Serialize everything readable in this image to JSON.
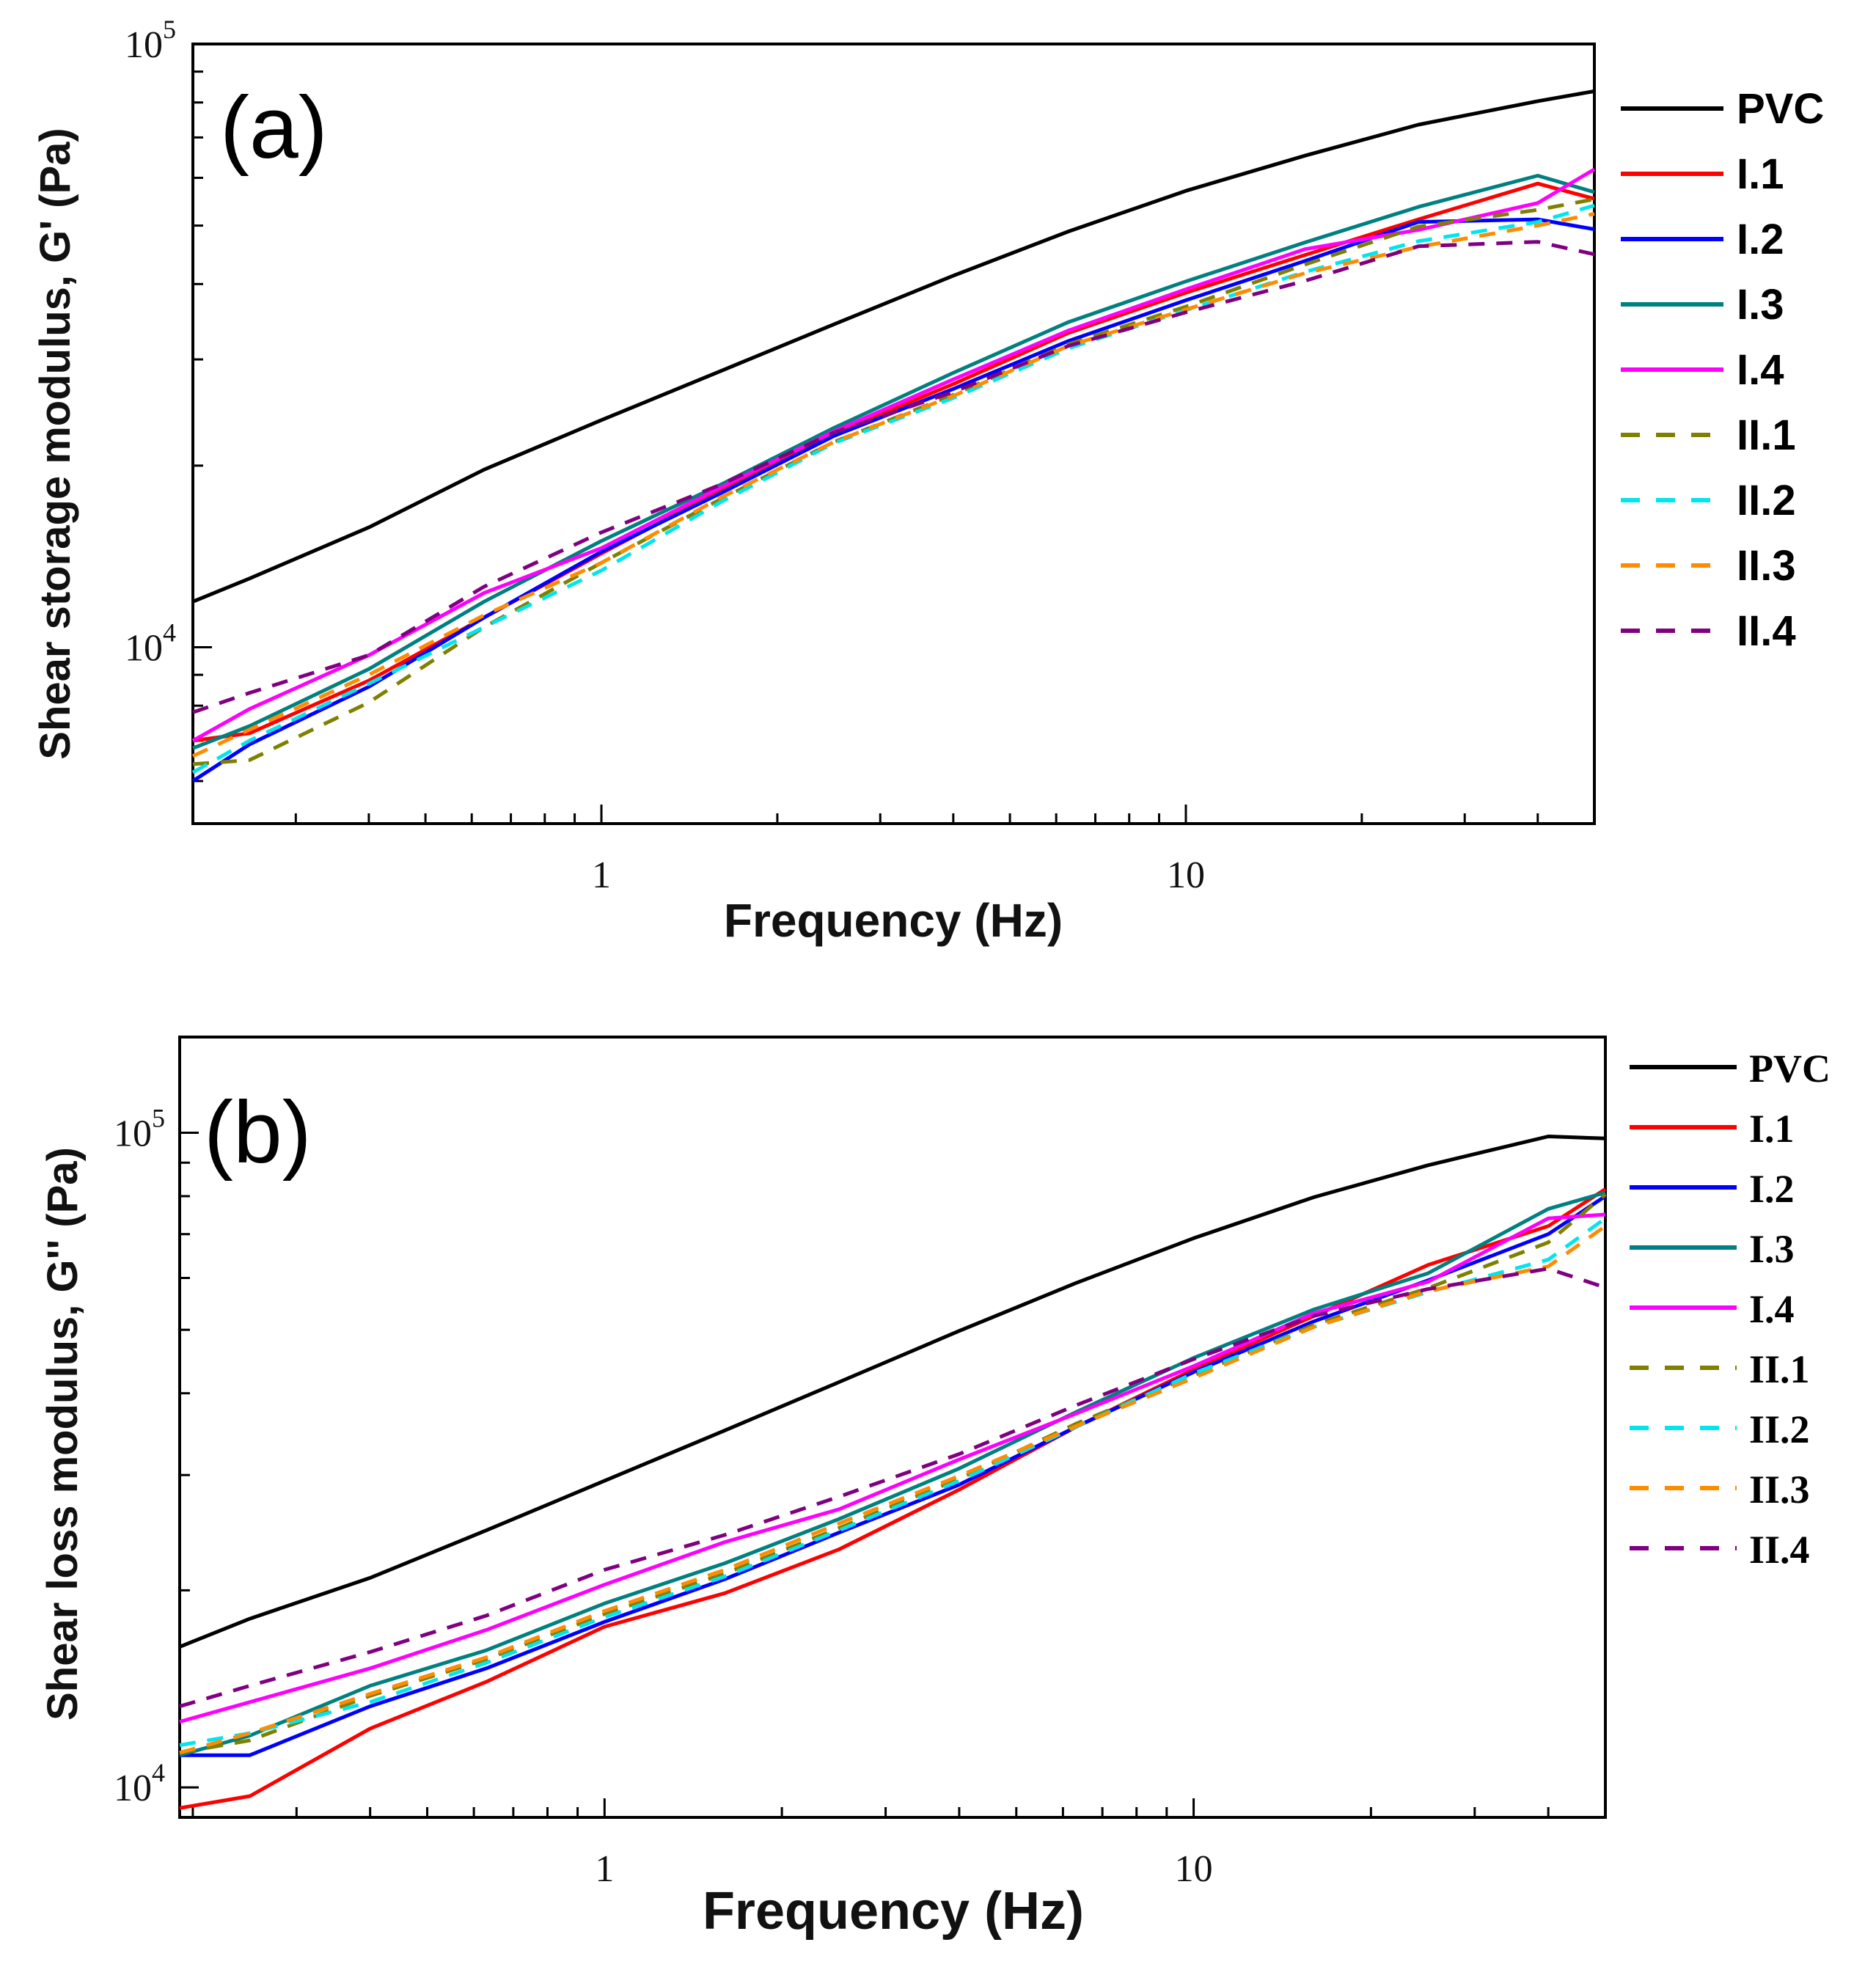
{
  "series_styles": [
    {
      "name": "PVC",
      "color": "#000000",
      "dash": false
    },
    {
      "name": "I.1",
      "color": "#ff0000",
      "dash": false
    },
    {
      "name": "I.2",
      "color": "#0000ff",
      "dash": false
    },
    {
      "name": "I.3",
      "color": "#008080",
      "dash": false
    },
    {
      "name": "I.4",
      "color": "#ff00ff",
      "dash": false
    },
    {
      "name": "II.1",
      "color": "#808000",
      "dash": true
    },
    {
      "name": "II.2",
      "color": "#00e5ee",
      "dash": true
    },
    {
      "name": "II.3",
      "color": "#ff8c00",
      "dash": true
    },
    {
      "name": "II.4",
      "color": "#800080",
      "dash": true
    }
  ],
  "chart_data": [
    {
      "panel": "(a)",
      "type": "line",
      "xlabel": "Frequency (Hz)",
      "ylabel": "Shear storage modulus, G' (Pa)",
      "xscale": "log",
      "yscale": "log",
      "xlim": [
        0.2,
        50
      ],
      "ylim": [
        5100,
        100000
      ],
      "xticks": [
        {
          "value": 1,
          "label": "1"
        },
        {
          "value": 10,
          "label": "10"
        }
      ],
      "yticks": [
        {
          "value": 10000,
          "base": "10",
          "exp": "4"
        },
        {
          "value": 100000,
          "base": "10",
          "exp": "5"
        }
      ],
      "legend": "right-outside",
      "x": [
        0.2,
        0.25,
        0.4,
        0.63,
        1.0,
        1.6,
        2.5,
        4.0,
        6.3,
        10.0,
        16.0,
        25.0,
        40.0,
        50.0
      ],
      "series": [
        {
          "name": "PVC",
          "values": [
            11900,
            13000,
            15800,
            19700,
            23800,
            28700,
            34300,
            41300,
            48900,
            57100,
            65300,
            73500,
            80400,
            83500
          ]
        },
        {
          "name": "I.1",
          "values": [
            7000,
            7200,
            8800,
            11200,
            14300,
            18200,
            22600,
            27300,
            33200,
            38700,
            44700,
            51200,
            58700,
            55400
          ]
        },
        {
          "name": "I.2",
          "values": [
            6000,
            6900,
            8600,
            11200,
            14400,
            18000,
            22400,
            26800,
            32200,
            37600,
            43700,
            50700,
            51200,
            49300
          ]
        },
        {
          "name": "I.3",
          "values": [
            6800,
            7400,
            9200,
            11900,
            15000,
            18600,
            23100,
            28500,
            34600,
            40400,
            46900,
            53700,
            60500,
            56800
          ]
        },
        {
          "name": "I.4",
          "values": [
            7000,
            7900,
            9700,
            12300,
            14600,
            18400,
            22800,
            27800,
            33500,
            39200,
            45700,
            49200,
            54500,
            62000
          ]
        },
        {
          "name": "II.1",
          "values": [
            6400,
            6500,
            8100,
            10800,
            13800,
            17600,
            21900,
            26200,
            31800,
            36700,
            43100,
            49800,
            53100,
            55300
          ]
        },
        {
          "name": "II.2",
          "values": [
            6200,
            7000,
            8700,
            10800,
            13400,
            17400,
            21800,
            25900,
            31300,
            36200,
            41900,
            47100,
            50700,
            54000
          ]
        },
        {
          "name": "II.3",
          "values": [
            6600,
            7300,
            9000,
            11300,
            13800,
            17700,
            21900,
            26100,
            31600,
            36300,
            41700,
            46100,
            50000,
            52300
          ]
        },
        {
          "name": "II.4",
          "values": [
            7800,
            8400,
            9700,
            12600,
            15500,
            18600,
            22700,
            26500,
            31600,
            35900,
            40500,
            46200,
            47000,
            44800
          ]
        }
      ]
    },
    {
      "panel": "(b)",
      "type": "line",
      "xlabel": "Frequency (Hz)",
      "ylabel": "Shear loss modulus, G'' (Pa)",
      "xscale": "log",
      "yscale": "log",
      "xlim": [
        0.19,
        50
      ],
      "ylim": [
        9000,
        140000
      ],
      "xticks": [
        {
          "value": 1,
          "label": "1"
        },
        {
          "value": 10,
          "label": "10"
        }
      ],
      "yticks": [
        {
          "value": 10000,
          "base": "10",
          "exp": "4"
        },
        {
          "value": 100000,
          "base": "10",
          "exp": "5"
        }
      ],
      "legend": "right-outside",
      "x": [
        0.19,
        0.25,
        0.4,
        0.63,
        1.0,
        1.6,
        2.5,
        4.0,
        6.3,
        10.0,
        16.0,
        25.0,
        40.0,
        50.0
      ],
      "series": [
        {
          "name": "PVC",
          "values": [
            16400,
            18100,
            20900,
            24700,
            29400,
            35100,
            41600,
            49800,
            58900,
            69000,
            79700,
            89200,
            98700,
            98000
          ]
        },
        {
          "name": "I.1",
          "values": [
            9300,
            9700,
            12300,
            14500,
            17600,
            19800,
            23100,
            28500,
            35500,
            43500,
            52500,
            62800,
            72000,
            82000
          ]
        },
        {
          "name": "I.2",
          "values": [
            11200,
            11200,
            13300,
            15200,
            17900,
            20800,
            24500,
            29000,
            35500,
            43100,
            51500,
            59500,
            70000,
            80000
          ]
        },
        {
          "name": "I.3",
          "values": [
            11200,
            12000,
            14300,
            16200,
            19100,
            22000,
            25700,
            30700,
            37400,
            45300,
            53700,
            61000,
            76500,
            81000
          ]
        },
        {
          "name": "I.4",
          "values": [
            12600,
            13500,
            15200,
            17400,
            20400,
            23700,
            26600,
            31700,
            37200,
            44000,
            53000,
            59200,
            74000,
            75000
          ]
        },
        {
          "name": "II.1",
          "values": [
            11300,
            11800,
            13800,
            15700,
            18400,
            21200,
            24900,
            29600,
            35900,
            42600,
            50900,
            57900,
            68000,
            80500
          ]
        },
        {
          "name": "II.2",
          "values": [
            11600,
            12100,
            13500,
            15500,
            18200,
            21000,
            24700,
            29400,
            35500,
            42900,
            50500,
            57100,
            64000,
            74000
          ]
        },
        {
          "name": "II.3",
          "values": [
            11300,
            12100,
            13900,
            15800,
            18600,
            21500,
            25300,
            29900,
            35600,
            42200,
            50500,
            57300,
            62500,
            72000
          ]
        },
        {
          "name": "II.4",
          "values": [
            13300,
            14300,
            16100,
            18300,
            21500,
            24300,
            27800,
            32300,
            38300,
            45100,
            52500,
            57700,
            62000,
            58000
          ]
        }
      ]
    }
  ]
}
